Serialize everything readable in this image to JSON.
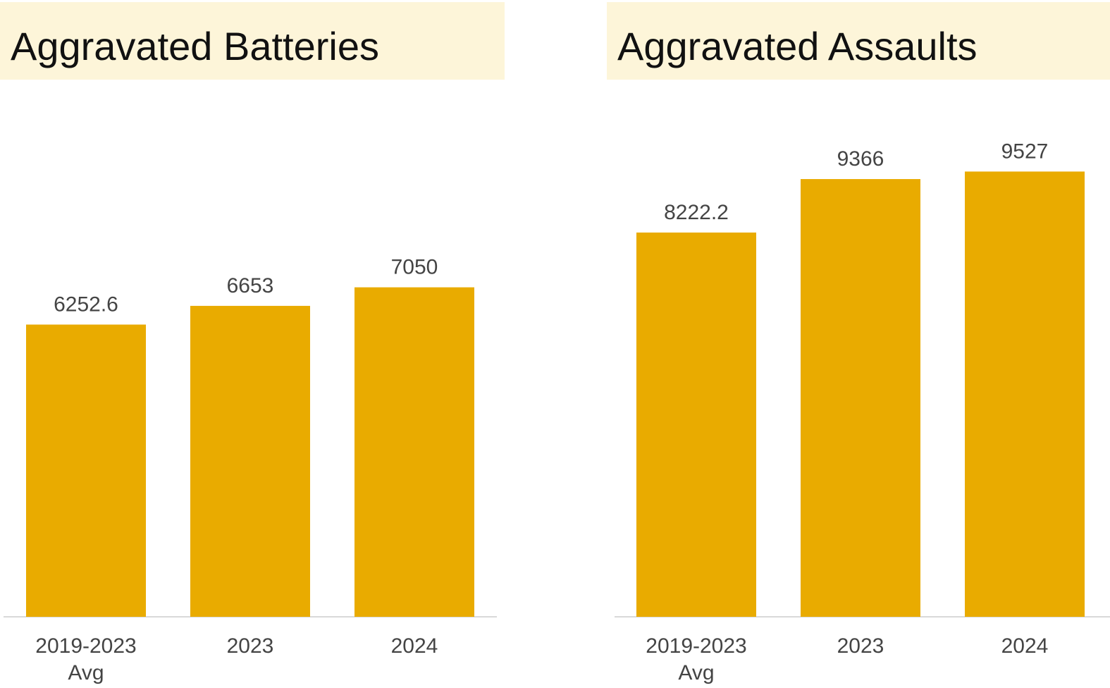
{
  "chart_data": [
    {
      "type": "bar",
      "title": "Aggravated Batteries",
      "categories": [
        "2019-2023 Avg",
        "2023",
        "2024"
      ],
      "values": [
        6252.6,
        6653,
        7050
      ],
      "color": "#e9ab00",
      "ylim": [
        0,
        10000
      ]
    },
    {
      "type": "bar",
      "title": "Aggravated Assaults",
      "categories": [
        "2019-2023 Avg",
        "2023",
        "2024"
      ],
      "values": [
        8222.2,
        9366,
        9527
      ],
      "color": "#e9ab00",
      "ylim": [
        0,
        10000
      ]
    }
  ]
}
